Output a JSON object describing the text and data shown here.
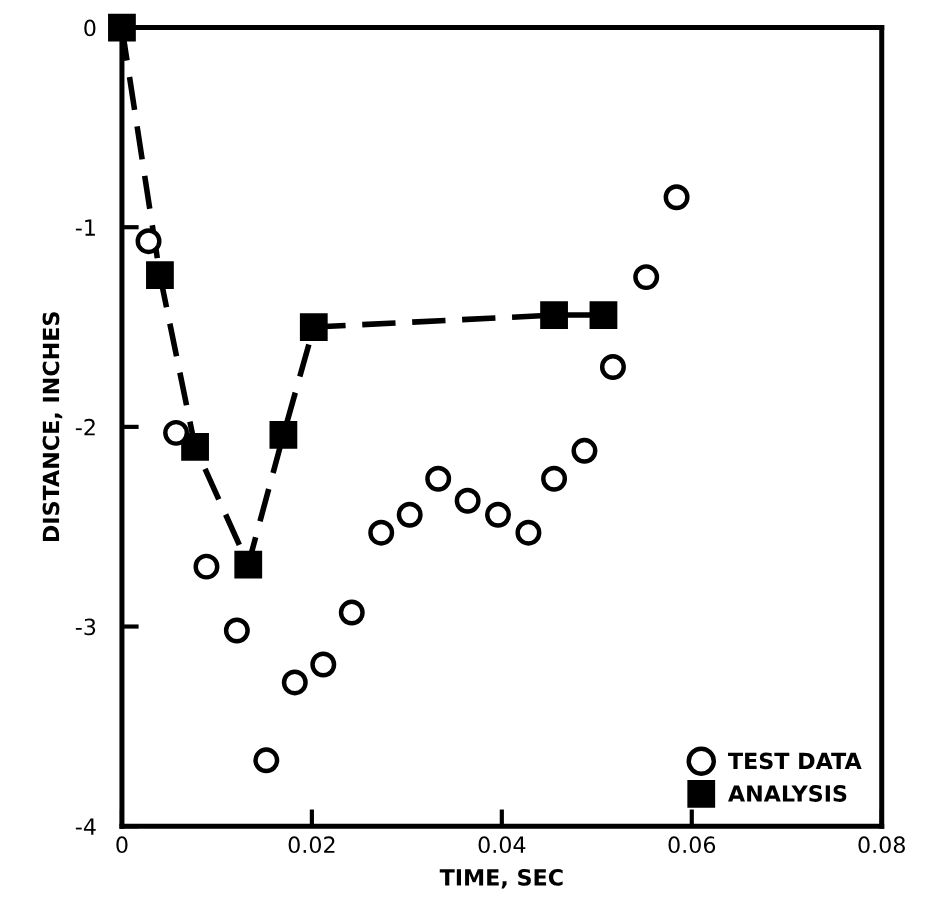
{
  "chart_data": {
    "type": "scatter",
    "xlabel": "TIME, SEC",
    "ylabel": "DISTANCE, INCHES",
    "xlim": [
      0,
      0.08
    ],
    "ylim": [
      -4,
      0
    ],
    "xticks": [
      0,
      0.02,
      0.04,
      0.06,
      0.08
    ],
    "yticks": [
      0,
      -1,
      -2,
      -3,
      -4
    ],
    "grid": false,
    "legend": "bottom right",
    "series": [
      {
        "name": "TEST DATA",
        "marker": "circle",
        "color": "#000000",
        "x": [
          0.0028,
          0.0057,
          0.0089,
          0.0121,
          0.0152,
          0.0182,
          0.0212,
          0.0242,
          0.0273,
          0.0303,
          0.0333,
          0.0364,
          0.0396,
          0.0428,
          0.0455,
          0.0487,
          0.0517,
          0.0552,
          0.0584
        ],
        "values": [
          -1.07,
          -2.03,
          -2.7,
          -3.02,
          -3.67,
          -3.28,
          -3.19,
          -2.93,
          -2.53,
          -2.44,
          -2.26,
          -2.37,
          -2.44,
          -2.53,
          -2.26,
          -2.12,
          -1.7,
          -1.25,
          -0.85
        ]
      },
      {
        "name": "ANALYSIS",
        "type": "line",
        "marker": "square",
        "line_style": "dashed",
        "color": "#000000",
        "x": [
          0,
          0.004,
          0.0077,
          0.0133,
          0.017,
          0.0202,
          0.0455,
          0.0507
        ],
        "values": [
          0,
          -1.24,
          -2.1,
          -2.69,
          -2.04,
          -1.5,
          -1.44,
          -1.44
        ]
      }
    ]
  }
}
